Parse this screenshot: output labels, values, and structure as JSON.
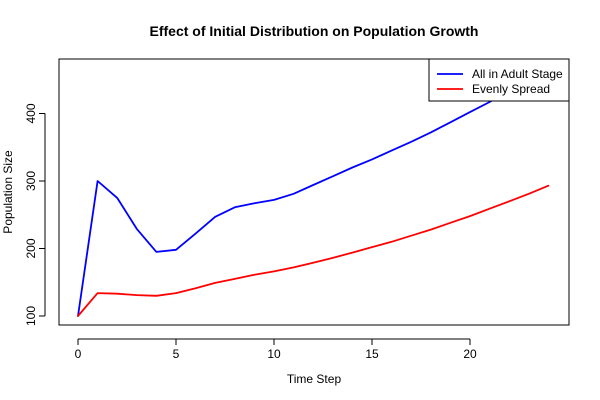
{
  "chart_data": {
    "type": "line",
    "title": "Effect of Initial Distribution on Population Growth",
    "xlabel": "Time Step",
    "ylabel": "Population Size",
    "xlim": [
      0,
      24
    ],
    "ylim": [
      100,
      460
    ],
    "x_ticks": [
      "0",
      "5",
      "10",
      "15",
      "20"
    ],
    "y_ticks": [
      "100",
      "200",
      "300",
      "400"
    ],
    "grid": false,
    "legend_position": "top-right",
    "x": [
      0,
      1,
      2,
      3,
      4,
      5,
      6,
      7,
      8,
      9,
      10,
      11,
      12,
      13,
      14,
      15,
      16,
      17,
      18,
      19,
      20,
      21,
      22,
      23,
      24
    ],
    "series": [
      {
        "name": "All in Adult Stage",
        "color": "#0000ff",
        "values": [
          100,
          300,
          275,
          229,
          195,
          198,
          222,
          247,
          261,
          267,
          272,
          281,
          294,
          307,
          320,
          332,
          345,
          358,
          372,
          387,
          402,
          417,
          433,
          450,
          467
        ]
      },
      {
        "name": "Evenly Spread",
        "color": "#ff0000",
        "values": [
          100,
          134,
          133,
          131,
          130,
          134,
          141,
          149,
          155,
          161,
          166,
          172,
          179,
          186,
          194,
          202,
          210,
          219,
          228,
          238,
          248,
          259,
          270,
          281,
          293
        ]
      }
    ]
  }
}
